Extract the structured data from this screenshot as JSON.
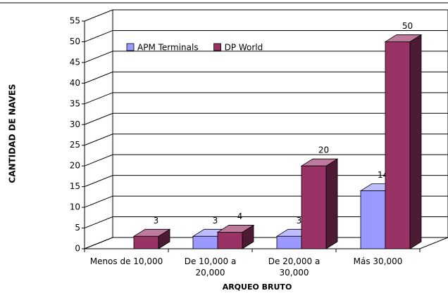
{
  "chart_data": {
    "type": "bar3d",
    "x_label": "ARQUEO BRUTO",
    "y_label": "CANTIDAD DE NAVES",
    "categories": [
      "Menos de 10,000",
      "De 10,000 a 20,000",
      "De 20,000 a 30,000",
      "Más 30,000"
    ],
    "series": [
      {
        "name": "APM Terminals",
        "color": "#9999ff",
        "values": [
          null,
          3,
          3,
          14
        ]
      },
      {
        "name": "DP World",
        "color": "#993366",
        "values": [
          3,
          4,
          20,
          50
        ]
      }
    ],
    "ylim": [
      0,
      55
    ],
    "yticks": [
      0,
      5,
      10,
      15,
      20,
      25,
      30,
      35,
      40,
      45,
      50,
      55
    ],
    "grid": true,
    "legend": "top-left"
  }
}
